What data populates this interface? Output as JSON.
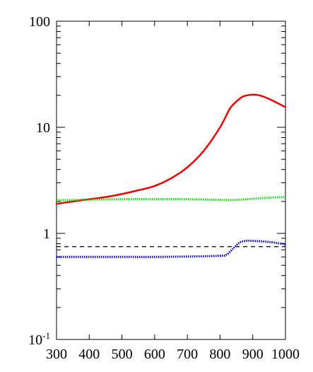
{
  "chart_data": {
    "type": "line",
    "title": "",
    "xlabel": "",
    "ylabel": "",
    "xlim": [
      300,
      1000
    ],
    "ylim": [
      0.1,
      100
    ],
    "yscale": "log",
    "grid": false,
    "legend": "none",
    "x_ticks": [
      300,
      400,
      500,
      600,
      700,
      800,
      900,
      1000
    ],
    "x_tick_labels": [
      "300",
      "400",
      "500",
      "600",
      "700",
      "800",
      "900",
      "1000"
    ],
    "y_ticks": [
      {
        "value": 100,
        "base": "100",
        "exp": ""
      },
      {
        "value": 10,
        "base": "10",
        "exp": ""
      },
      {
        "value": 1,
        "base": "1",
        "exp": ""
      },
      {
        "value": 0.1,
        "base": "10",
        "exp": "-1"
      }
    ],
    "series": [
      {
        "color": "#ee0000",
        "style": "solid",
        "x": [
          300,
          350,
          400,
          450,
          500,
          550,
          600,
          650,
          700,
          750,
          800,
          830,
          850,
          870,
          890,
          900,
          920,
          950,
          1000
        ],
        "y": [
          1.9,
          2.0,
          2.1,
          2.2,
          2.35,
          2.55,
          2.8,
          3.3,
          4.2,
          6.0,
          10.0,
          15.0,
          17.5,
          19.5,
          20.2,
          20.3,
          20.0,
          18.5,
          15.5
        ]
      },
      {
        "color": "#00dd00",
        "style": "dotted",
        "x": [
          300,
          400,
          500,
          600,
          700,
          800,
          850,
          900,
          950,
          1000
        ],
        "y": [
          2.05,
          2.08,
          2.1,
          2.1,
          2.1,
          2.07,
          2.07,
          2.12,
          2.17,
          2.2
        ]
      },
      {
        "color": "#000000",
        "style": "dashed",
        "x": [
          300,
          1000
        ],
        "y": [
          0.75,
          0.75
        ]
      },
      {
        "color": "#0000cc",
        "style": "dotted",
        "x": [
          300,
          400,
          500,
          600,
          700,
          800,
          820,
          840,
          860,
          880,
          900,
          950,
          1000
        ],
        "y": [
          0.6,
          0.6,
          0.6,
          0.6,
          0.605,
          0.615,
          0.63,
          0.72,
          0.82,
          0.85,
          0.85,
          0.83,
          0.79
        ]
      }
    ]
  }
}
